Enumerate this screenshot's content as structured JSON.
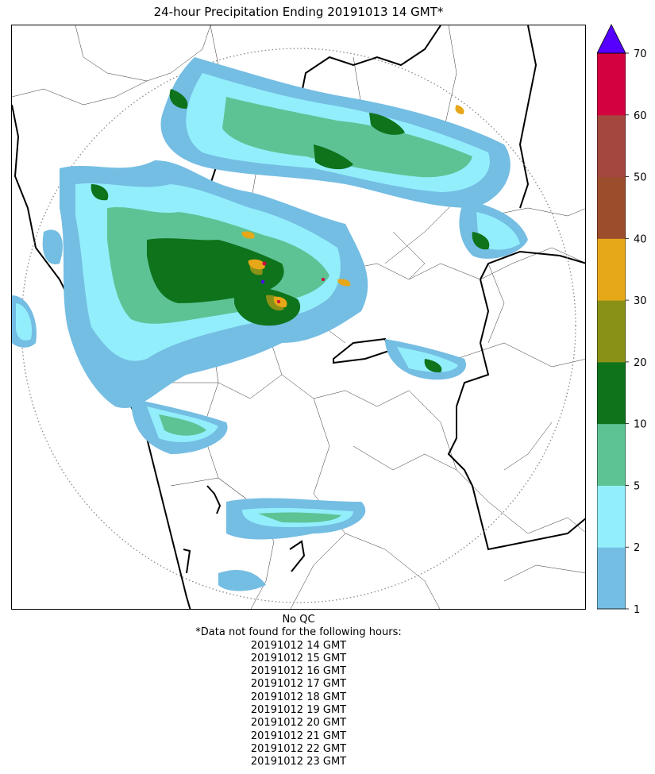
{
  "title": "24-hour Precipitation Ending 20191013 14 GMT*",
  "footer": {
    "qc_status": "No QC",
    "missing_note": "*Data not found for the following hours:",
    "missing_hours": [
      "20191012 14 GMT",
      "20191012 15 GMT",
      "20191012 16 GMT",
      "20191012 17 GMT",
      "20191012 18 GMT",
      "20191012 19 GMT",
      "20191012 20 GMT",
      "20191012 21 GMT",
      "20191012 22 GMT",
      "20191012 23 GMT"
    ]
  },
  "colorbar": {
    "extend": "max",
    "over_color": "#5500ff",
    "bins": [
      {
        "from": 1,
        "to": 2,
        "color": "#74bde3"
      },
      {
        "from": 2,
        "to": 5,
        "color": "#93eefc"
      },
      {
        "from": 5,
        "to": 10,
        "color": "#5dc395"
      },
      {
        "from": 10,
        "to": 20,
        "color": "#0e731b"
      },
      {
        "from": 20,
        "to": 30,
        "color": "#8a9117"
      },
      {
        "from": 30,
        "to": 40,
        "color": "#e6a718"
      },
      {
        "from": 40,
        "to": 50,
        "color": "#9c4d2c"
      },
      {
        "from": 50,
        "to": 60,
        "color": "#a4473f"
      },
      {
        "from": 60,
        "to": 70,
        "color": "#d3013f"
      }
    ],
    "tick_labels": [
      "1",
      "2",
      "5",
      "10",
      "20",
      "30",
      "40",
      "50",
      "60",
      "70"
    ]
  }
}
